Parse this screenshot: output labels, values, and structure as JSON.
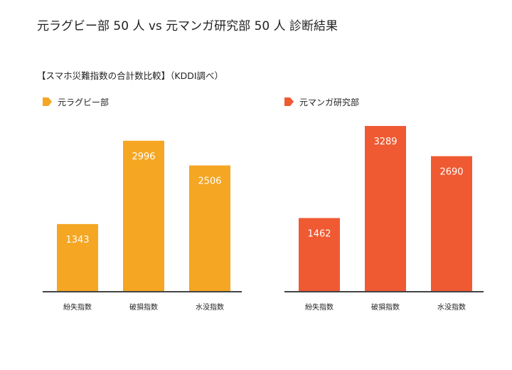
{
  "page": {
    "title": "元ラグビー部 50 人 vs 元マンガ研究部 50 人 診断結果",
    "subtitle": "【スマホ災難指数の合計数比較】（KDDI調べ）"
  },
  "chart_data": [
    {
      "type": "bar",
      "title": "",
      "categories": [
        "紛失指数",
        "破損指数",
        "水没指数"
      ],
      "series": [
        {
          "name": "元ラグビー部",
          "values": [
            1343,
            2996,
            2506
          ],
          "color": "#f5a623"
        }
      ],
      "ylim": [
        0,
        3600
      ],
      "xlabel": "",
      "ylabel": "",
      "grid": false,
      "legend": "top-left",
      "data_labels": true
    },
    {
      "type": "bar",
      "title": "",
      "categories": [
        "紛失指数",
        "破損指数",
        "水没指数"
      ],
      "series": [
        {
          "name": "元マンガ研究部",
          "values": [
            1462,
            3289,
            2690
          ],
          "color": "#ef5a33"
        }
      ],
      "ylim": [
        0,
        3600
      ],
      "xlabel": "",
      "ylabel": "",
      "grid": false,
      "legend": "top-left",
      "data_labels": true
    }
  ]
}
